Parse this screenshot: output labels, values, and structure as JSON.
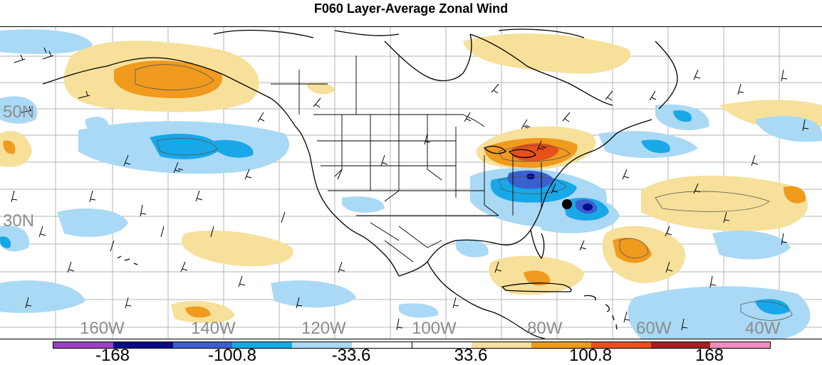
{
  "title": "F060 Layer-Average Zonal Wind",
  "latitude_labels": [
    "50N",
    "30N"
  ],
  "longitude_labels": [
    "160W",
    "140W",
    "120W",
    "100W",
    "80W",
    "60W",
    "40W"
  ],
  "colorbar": {
    "colors": [
      "#9a3fc7",
      "#0a0a8c",
      "#3a5fd0",
      "#18a8e8",
      "#a9d9f5",
      "#ffffff",
      "#ffffff",
      "#f6e09a",
      "#f09a1e",
      "#e8501a",
      "#a41f1f",
      "#f08cbf"
    ],
    "tick_labels": [
      "-168",
      "-100.8",
      "-33.6",
      "33.6",
      "100.8",
      "168"
    ]
  },
  "storm_marker": "storm-center"
}
